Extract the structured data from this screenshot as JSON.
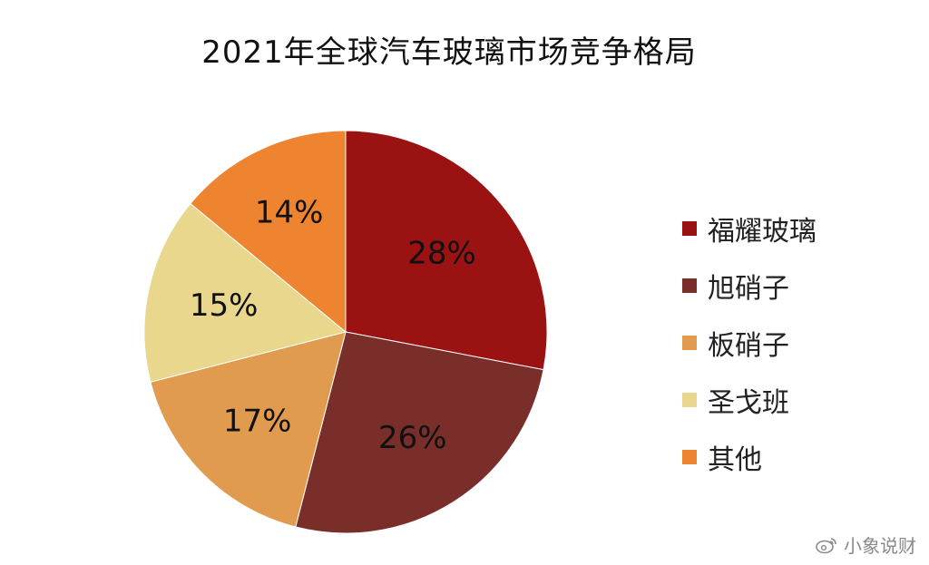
{
  "chart_data": {
    "type": "pie",
    "title": "2021年全球汽车玻璃市场竞争格局",
    "categories": [
      "福耀玻璃",
      "旭硝子",
      "板硝子",
      "圣戈班",
      "其他"
    ],
    "values": [
      28,
      26,
      17,
      15,
      14
    ],
    "value_labels": [
      "28%",
      "26%",
      "17%",
      "15%",
      "14%"
    ],
    "colors": [
      "#9B1212",
      "#7A2E2A",
      "#E19B4E",
      "#E8D78C",
      "#EF8430"
    ],
    "legend_position": "right",
    "start_angle": "12 o'clock, clockwise"
  },
  "watermark": {
    "text": "小象说财",
    "icon": "weibo-icon"
  }
}
